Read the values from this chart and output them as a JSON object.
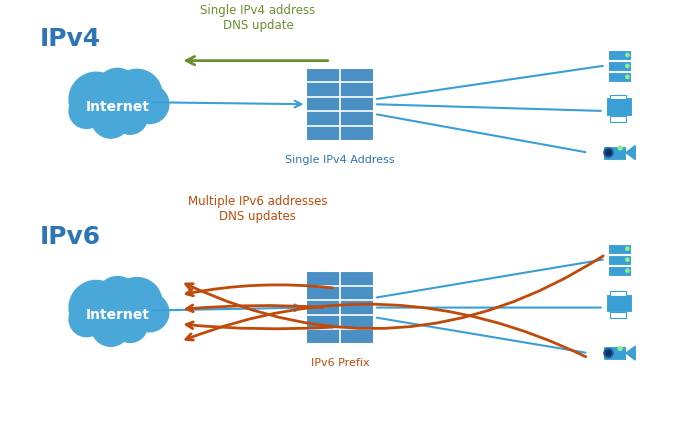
{
  "bg_color": "#ffffff",
  "blue_color": "#3a9fd5",
  "dark_blue_text": "#2e75b6",
  "green_color": "#6a8f2e",
  "orange_color": "#c04a0a",
  "cloud_blue": "#4aa8d8",
  "brick_blue": "#4a90c4",
  "ipv4_label": "IPv4",
  "ipv6_label": "IPv6",
  "internet_label": "Internet",
  "single_addr_label": "Single IPv4 Address",
  "ipv6_prefix_label": "IPv6 Prefix",
  "dns_update_label": "Single IPv4 address\nDNS update",
  "multi_dns_label": "Multiple IPv6 addresses\nDNS updates"
}
